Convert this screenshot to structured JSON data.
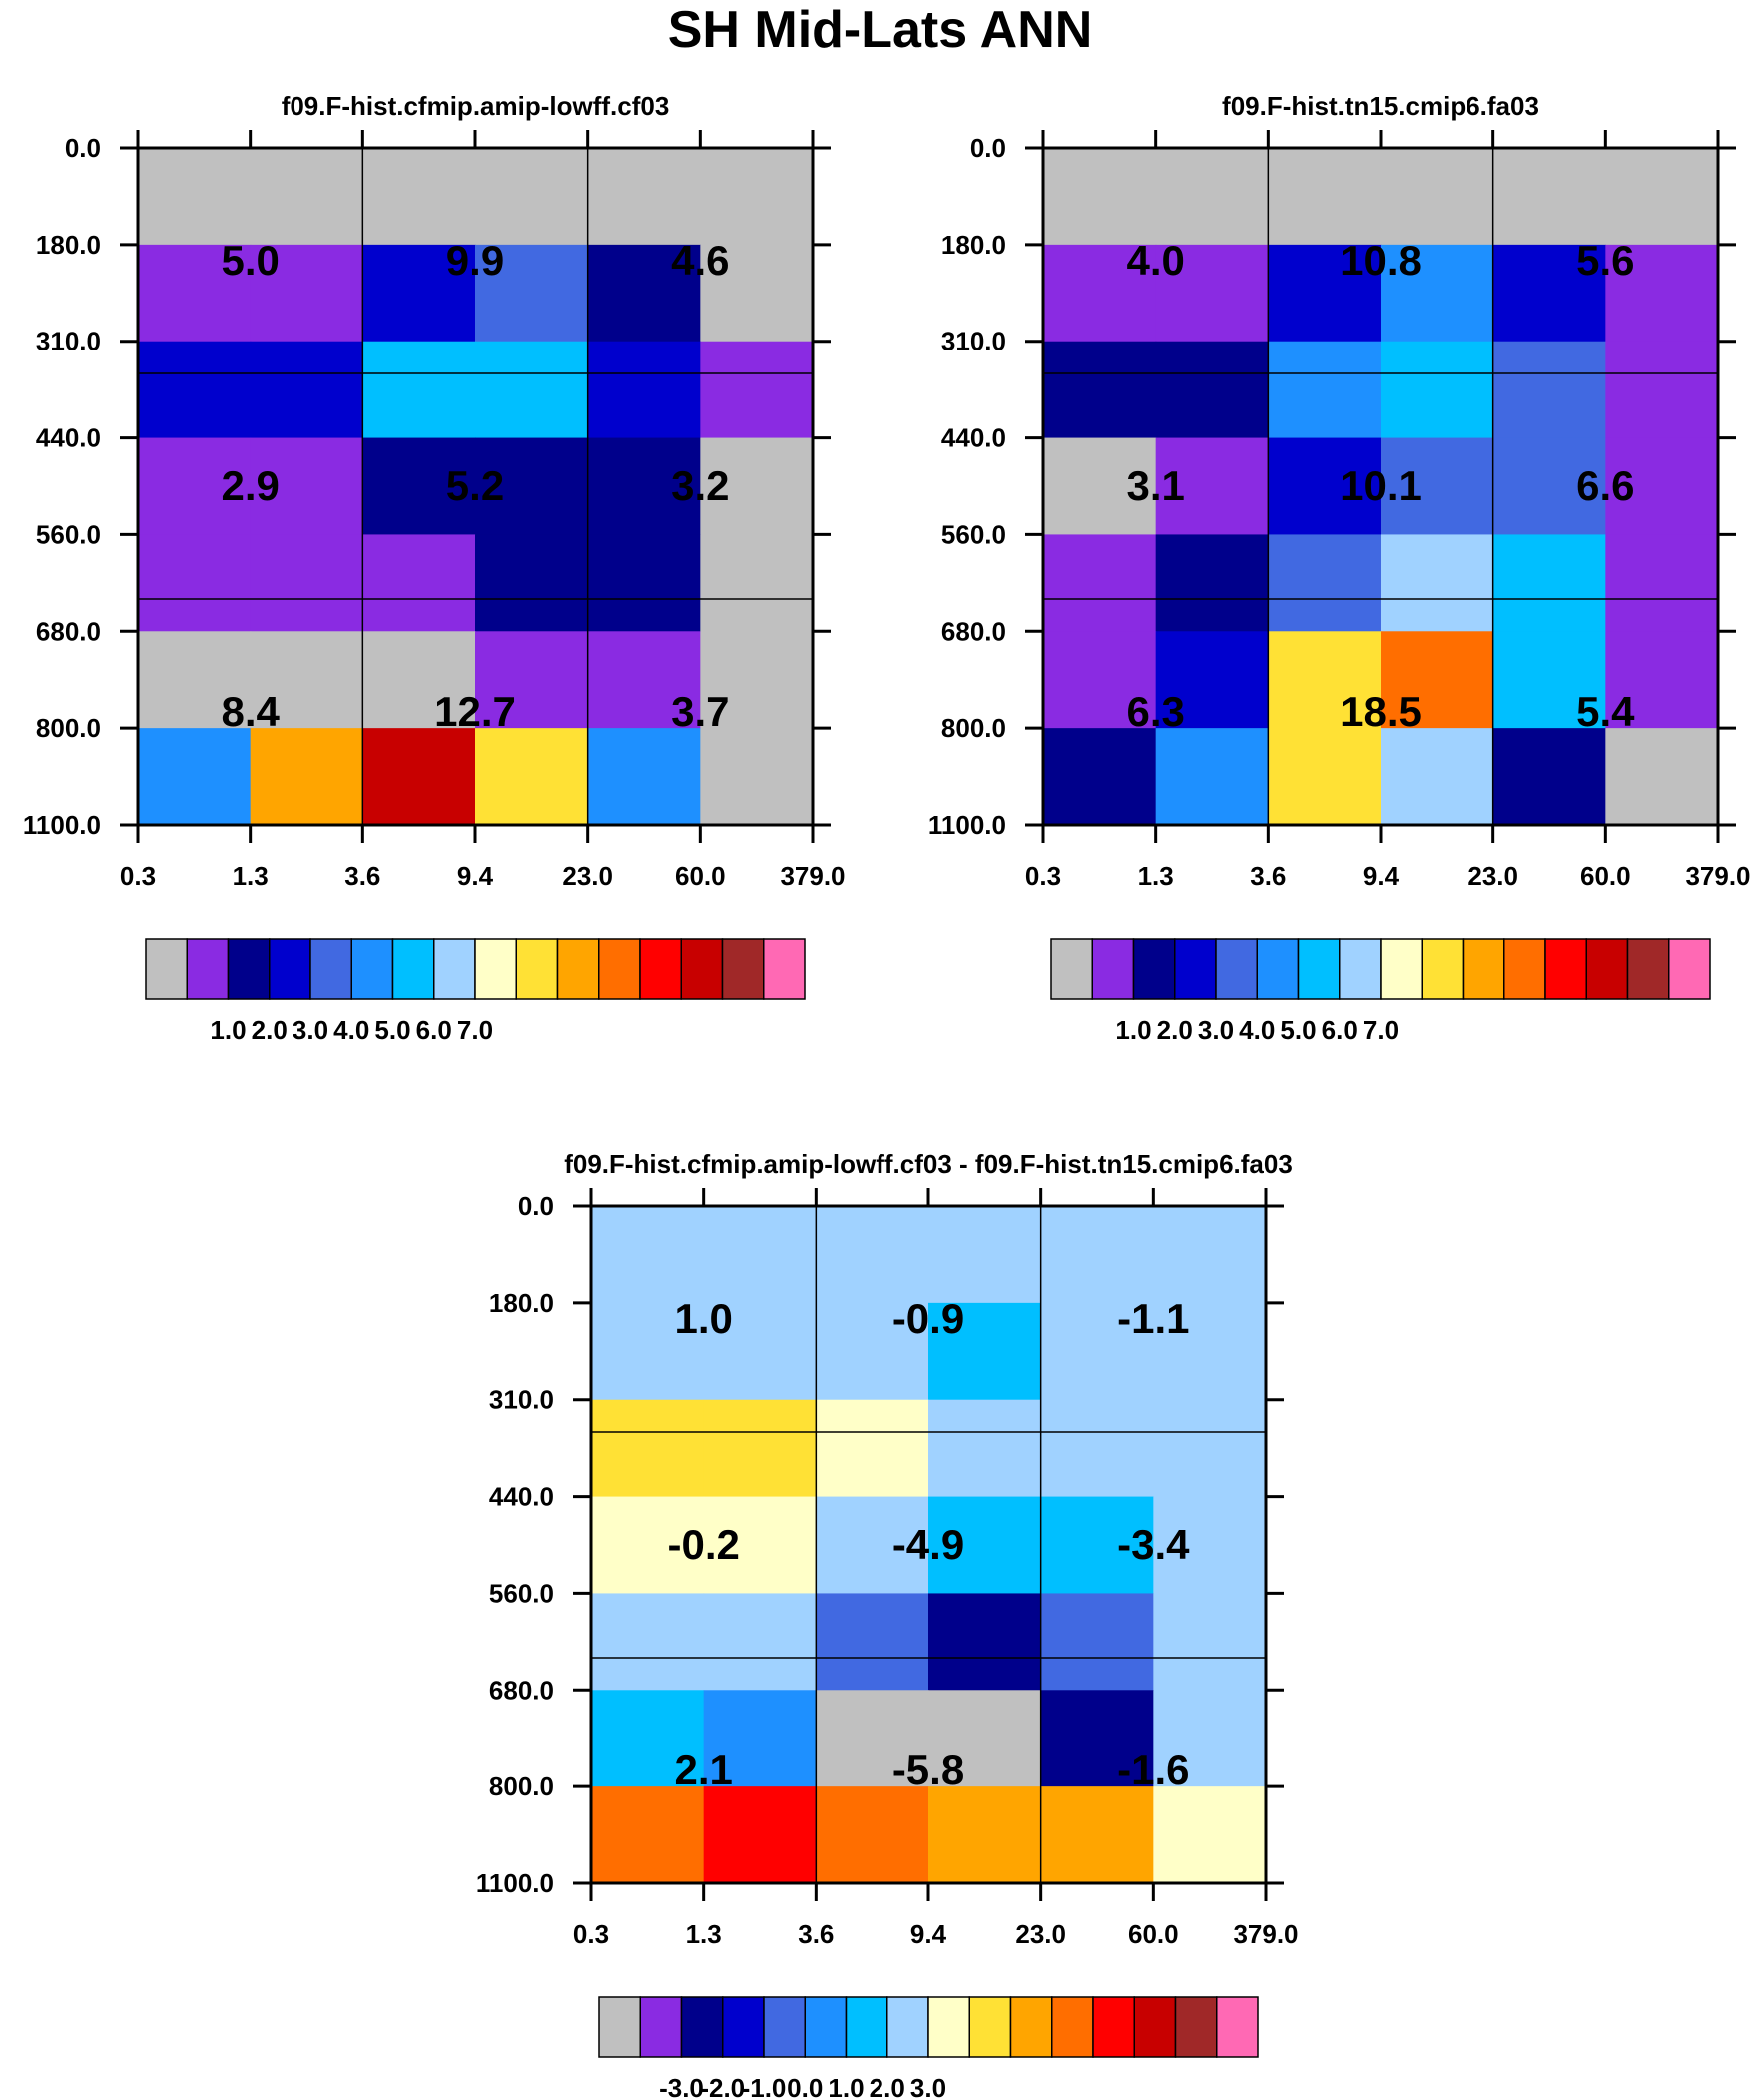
{
  "title": "SH Mid-Lats ANN",
  "colors": {
    "levels": [
      "#c0c0c0",
      "#8a2be2",
      "#00008b",
      "#0000cd",
      "#4169e1",
      "#1e90ff",
      "#00bfff",
      "#a0d2ff",
      "#ffffc8",
      "#ffe135",
      "#ffa500",
      "#ff6e00",
      "#ff0000",
      "#c80000",
      "#a02828",
      "#ff69b4"
    ],
    "grid": "#000000"
  },
  "chart_data": [
    {
      "type": "heatmap",
      "title": "f09.F-hist.cfmip.amip-lowff.cf03",
      "x_ticks": [
        "0.3",
        "1.3",
        "3.6",
        "9.4",
        "23.0",
        "60.0",
        "379.0"
      ],
      "y_ticks": [
        "0.0",
        "180.0",
        "310.0",
        "440.0",
        "560.0",
        "680.0",
        "800.0",
        "1100.0"
      ],
      "cells": [
        [
          0,
          0,
          0,
          0,
          0,
          0
        ],
        [
          1,
          1,
          3,
          4,
          2,
          0
        ],
        [
          3,
          3,
          6,
          6,
          3,
          1
        ],
        [
          1,
          1,
          2,
          2,
          2,
          0
        ],
        [
          1,
          1,
          1,
          2,
          2,
          0
        ],
        [
          0,
          0,
          0,
          1,
          1,
          0
        ],
        [
          5,
          10,
          13,
          9,
          5,
          0
        ]
      ],
      "block_values": [
        [
          "5.0",
          "9.9",
          "4.6"
        ],
        [
          "2.9",
          "5.2",
          "3.2"
        ],
        [
          "8.4",
          "12.7",
          "3.7"
        ]
      ],
      "colorbar_labels": [
        "1.0",
        "2.0",
        "3.0",
        "4.0",
        "5.0",
        "6.0",
        "7.0"
      ]
    },
    {
      "type": "heatmap",
      "title": "f09.F-hist.tn15.cmip6.fa03",
      "x_ticks": [
        "0.3",
        "1.3",
        "3.6",
        "9.4",
        "23.0",
        "60.0",
        "379.0"
      ],
      "y_ticks": [
        "0.0",
        "180.0",
        "310.0",
        "440.0",
        "560.0",
        "680.0",
        "800.0",
        "1100.0"
      ],
      "cells": [
        [
          0,
          0,
          0,
          0,
          0,
          0
        ],
        [
          1,
          1,
          3,
          5,
          3,
          1
        ],
        [
          2,
          2,
          5,
          6,
          4,
          1
        ],
        [
          0,
          1,
          3,
          4,
          4,
          1
        ],
        [
          1,
          2,
          4,
          7,
          6,
          1
        ],
        [
          1,
          3,
          9,
          11,
          6,
          1
        ],
        [
          2,
          5,
          9,
          7,
          2,
          0
        ]
      ],
      "block_values": [
        [
          "4.0",
          "10.8",
          "5.6"
        ],
        [
          "3.1",
          "10.1",
          "6.6"
        ],
        [
          "6.3",
          "18.5",
          "5.4"
        ]
      ],
      "colorbar_labels": [
        "1.0",
        "2.0",
        "3.0",
        "4.0",
        "5.0",
        "6.0",
        "7.0"
      ]
    },
    {
      "type": "heatmap",
      "title": "f09.F-hist.cfmip.amip-lowff.cf03 - f09.F-hist.tn15.cmip6.fa03",
      "x_ticks": [
        "0.3",
        "1.3",
        "3.6",
        "9.4",
        "23.0",
        "60.0",
        "379.0"
      ],
      "y_ticks": [
        "0.0",
        "180.0",
        "310.0",
        "440.0",
        "560.0",
        "680.0",
        "800.0",
        "1100.0"
      ],
      "cells": [
        [
          7,
          7,
          7,
          7,
          7,
          7
        ],
        [
          7,
          7,
          7,
          6,
          7,
          7
        ],
        [
          9,
          9,
          8,
          7,
          7,
          7
        ],
        [
          8,
          8,
          7,
          6,
          6,
          7
        ],
        [
          7,
          7,
          4,
          2,
          4,
          7
        ],
        [
          6,
          5,
          0,
          0,
          2,
          7
        ],
        [
          11,
          12,
          11,
          10,
          10,
          8
        ]
      ],
      "block_values": [
        [
          "1.0",
          "-0.9",
          "-1.1"
        ],
        [
          "-0.2",
          "-4.9",
          "-3.4"
        ],
        [
          "2.1",
          "-5.8",
          "-1.6"
        ]
      ],
      "colorbar_labels": [
        "-3.0",
        "-2.0",
        "-1.0",
        "0.0",
        "1.0",
        "2.0",
        "3.0"
      ]
    }
  ]
}
